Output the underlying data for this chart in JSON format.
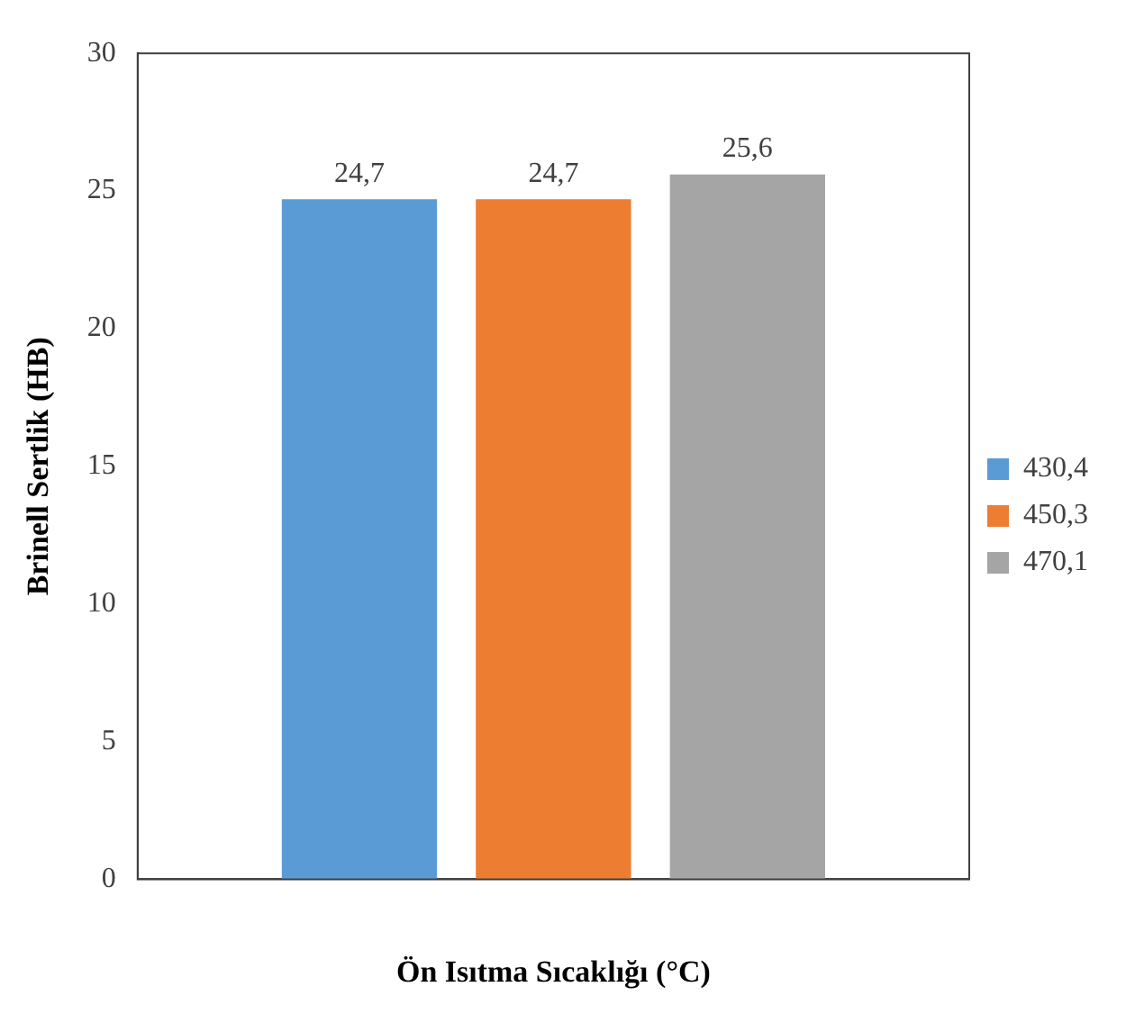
{
  "chart_data": {
    "type": "bar",
    "xlabel": "Ön Isıtma Sıcaklığı (°C)",
    "ylabel": "Brinell Sertlik (HB)",
    "categories": [
      null
    ],
    "series": [
      {
        "name": "430,4",
        "color": "#5b9bd5",
        "values": [
          24.7
        ],
        "value_labels": [
          "24,7"
        ]
      },
      {
        "name": "450,3",
        "color": "#ed7d31",
        "values": [
          24.7
        ],
        "value_labels": [
          "24,7"
        ]
      },
      {
        "name": "470,1",
        "color": "#a5a5a5",
        "values": [
          25.6
        ],
        "value_labels": [
          "25,6"
        ]
      }
    ],
    "ylim": [
      0,
      30
    ],
    "yticks": [
      0,
      5,
      10,
      15,
      20,
      25,
      30
    ],
    "grid": false,
    "legend": "right"
  }
}
